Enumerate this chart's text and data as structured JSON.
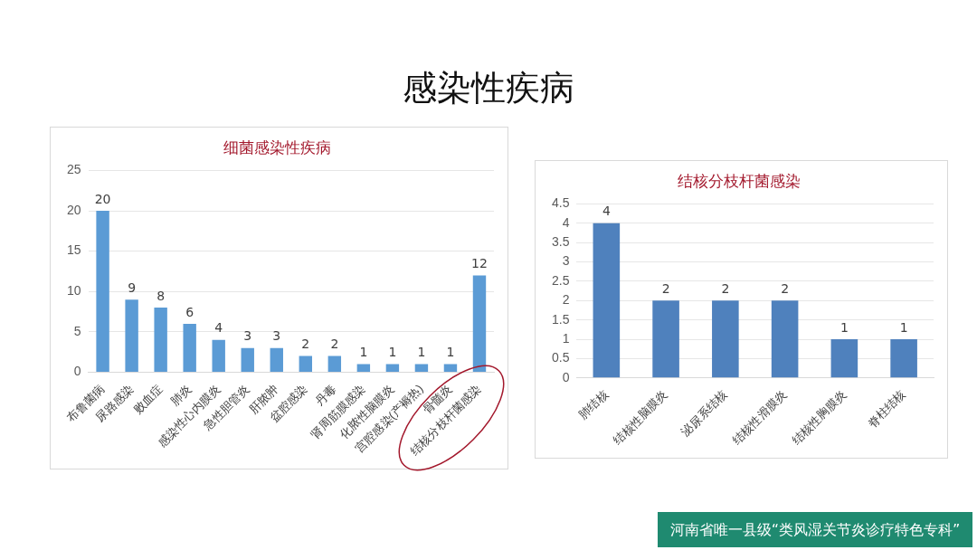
{
  "chart_data": [
    {
      "type": "bar",
      "title": "细菌感染性疾病",
      "annotations": [
        "感染性疾病"
      ],
      "categories": [
        "布鲁菌病",
        "尿路感染",
        "败血症",
        "肺炎",
        "感染性心内膜炎",
        "急性胆管炎",
        "肝脓肿",
        "盆腔感染",
        "丹毒",
        "肾周筋膜感染",
        "化脓性脑膜炎",
        "宫腔感染(产褥热)",
        "骨髓炎",
        "结核分枝杆菌感染"
      ],
      "values": [
        20,
        9,
        8,
        6,
        4,
        3,
        3,
        2,
        2,
        1,
        1,
        1,
        1,
        12
      ],
      "color": "#5b9bd5",
      "ylim": [
        0,
        25
      ],
      "yticks": [
        0,
        5,
        10,
        15,
        20,
        25
      ],
      "grid": "y",
      "data_labels": true,
      "legend": false
    },
    {
      "type": "bar",
      "title": "结核分枝杆菌感染",
      "annotations": [
        "河南省唯一县级“类风湿关节炎诊疗特色专科”"
      ],
      "categories": [
        "肺结核",
        "结核性脑膜炎",
        "泌尿系结核",
        "结核性滑膜炎",
        "结核性胸膜炎",
        "脊柱结核"
      ],
      "values": [
        4,
        2,
        2,
        2,
        1,
        1
      ],
      "color": "#4f81bd",
      "ylim": [
        0,
        4.5
      ],
      "yticks": [
        0,
        0.5,
        1,
        1.5,
        2,
        2.5,
        3,
        3.5,
        4,
        4.5
      ],
      "grid": "y",
      "data_labels": true,
      "legend": false
    }
  ]
}
